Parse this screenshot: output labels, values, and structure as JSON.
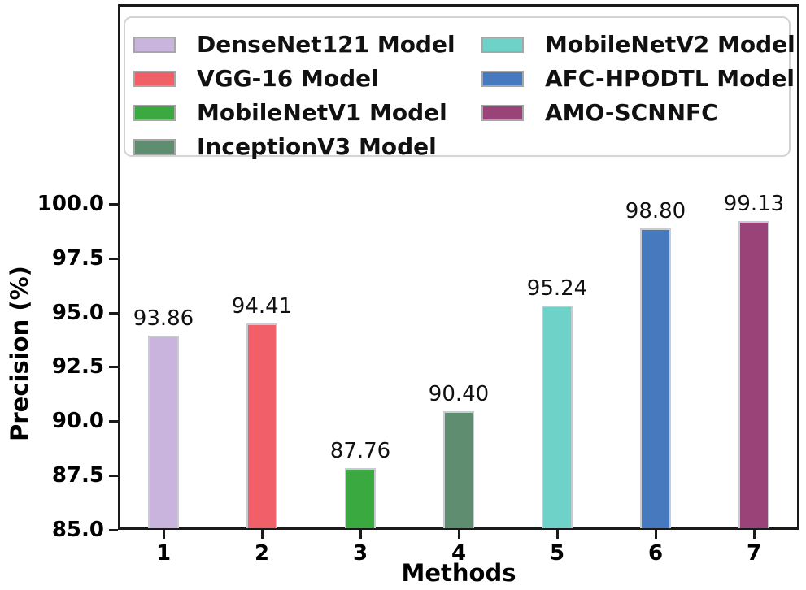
{
  "figure": {
    "background": "#ffffff",
    "axis_color": "#1a1a1a",
    "text_color": "#111111",
    "bar_edge_color": "#c6ccd2"
  },
  "chart_data": {
    "type": "bar",
    "title": "",
    "xlabel": "Methods",
    "ylabel": "Precision (%)",
    "categories": [
      "1",
      "2",
      "3",
      "4",
      "5",
      "6",
      "7"
    ],
    "values": [
      93.86,
      94.41,
      87.76,
      90.4,
      95.24,
      98.8,
      99.13
    ],
    "series": [
      {
        "label": "DenseNet121 Model",
        "color": "#c8b4dc",
        "value": 93.86,
        "value_label": "93.86"
      },
      {
        "label": "VGG-16 Model",
        "color": "#f15f68",
        "value": 94.41,
        "value_label": "94.41"
      },
      {
        "label": "MobileNetV1 Model",
        "color": "#3aaa40",
        "value": 87.76,
        "value_label": "87.76"
      },
      {
        "label": "InceptionV3 Model",
        "color": "#5f8d6f",
        "value": 90.4,
        "value_label": "90.40"
      },
      {
        "label": "MobileNetV2 Model",
        "color": "#6ed2c8",
        "value": 95.24,
        "value_label": "95.24"
      },
      {
        "label": "AFC-HPODTL Model",
        "color": "#4679bd",
        "value": 98.8,
        "value_label": "98.80"
      },
      {
        "label": "AMO-SCNNFC",
        "color": "#9a4378",
        "value": 99.13,
        "value_label": "99.13"
      }
    ],
    "y_ticks": [
      85.0,
      87.5,
      90.0,
      92.5,
      95.0,
      97.5,
      100.0
    ],
    "y_tick_labels": [
      "85.0",
      "87.5",
      "90.0",
      "92.5",
      "95.0",
      "97.5",
      "100.0"
    ],
    "ylim": [
      85,
      109.3
    ],
    "grid": false,
    "legend_position": "upper center inside axes",
    "legend_columns": 2,
    "legend_column_split": [
      4,
      3
    ]
  }
}
